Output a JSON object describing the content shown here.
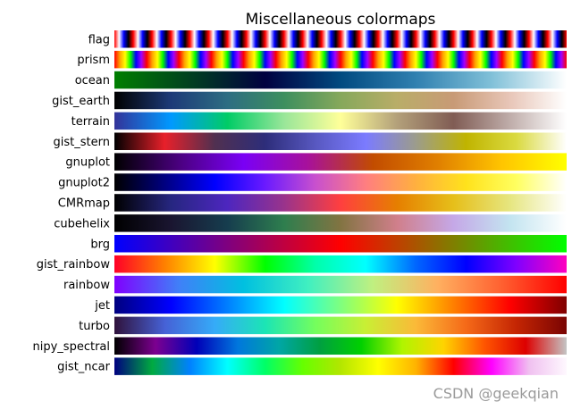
{
  "chart_data": {
    "type": "heatmap",
    "title": "Miscellaneous colormaps",
    "rows": [
      {
        "label": "flag",
        "stops": [
          "#ff0000",
          "#ffffff",
          "#0000ff",
          "#000000"
        ],
        "repeat": 24
      },
      {
        "label": "prism",
        "stops": [
          "#ff0000",
          "#ffa000",
          "#ffff00",
          "#00ff00",
          "#0000ff",
          "#a000ff"
        ],
        "repeat": 14
      },
      {
        "label": "ocean",
        "stops": [
          "#007f00",
          "#004020",
          "#000040",
          "#004a80",
          "#3080b0",
          "#80c0d8",
          "#ffffff"
        ]
      },
      {
        "label": "gist_earth",
        "stops": [
          "#000000",
          "#1d3a78",
          "#2d6d82",
          "#3d8f5e",
          "#86a85b",
          "#b9ad68",
          "#c89a76",
          "#e8c6b8",
          "#ffffff"
        ]
      },
      {
        "label": "terrain",
        "stops": [
          "#333399",
          "#0099ff",
          "#00cc66",
          "#99e699",
          "#ffff99",
          "#b3a07a",
          "#805c54",
          "#bfadaa",
          "#ffffff"
        ]
      },
      {
        "label": "gist_stern",
        "stops": [
          "#000000",
          "#e8202a",
          "#503050",
          "#2d2d7a",
          "#5858c0",
          "#7b7bff",
          "#9c9c8c",
          "#c0b400",
          "#dada40",
          "#ffffff"
        ]
      },
      {
        "label": "gnuplot",
        "stops": [
          "#000000",
          "#4a007f",
          "#7a00f5",
          "#a8119a",
          "#c24c00",
          "#e07f00",
          "#ffc500",
          "#ffff00"
        ]
      },
      {
        "label": "gnuplot2",
        "stops": [
          "#000000",
          "#000080",
          "#0000ff",
          "#6a1aff",
          "#c850ce",
          "#ff7e80",
          "#ffb03f",
          "#ffe21c",
          "#ffff60",
          "#ffffff"
        ]
      },
      {
        "label": "CMRmap",
        "stops": [
          "#000000",
          "#262680",
          "#4d26bf",
          "#99338c",
          "#ff3f3f",
          "#e67f00",
          "#e6bf1a",
          "#e6e680",
          "#ffffff"
        ]
      },
      {
        "label": "cubehelix",
        "stops": [
          "#000000",
          "#1a1530",
          "#163d4e",
          "#2e7e4e",
          "#827442",
          "#d07f8b",
          "#c5a8e7",
          "#c3e4f0",
          "#ffffff"
        ]
      },
      {
        "label": "brg",
        "stops": [
          "#0000ff",
          "#7f007f",
          "#ff0000",
          "#7f7f00",
          "#00ff00"
        ]
      },
      {
        "label": "gist_rainbow",
        "stops": [
          "#ff0028",
          "#ff8000",
          "#ffff00",
          "#00ff00",
          "#00ffaa",
          "#00ffff",
          "#0066ff",
          "#0000ff",
          "#8000ff",
          "#ff00bf"
        ]
      },
      {
        "label": "rainbow",
        "stops": [
          "#8000ff",
          "#4080f8",
          "#00c0e0",
          "#40f0c0",
          "#c0f080",
          "#ffb060",
          "#ff6030",
          "#ff0000"
        ]
      },
      {
        "label": "jet",
        "stops": [
          "#00007f",
          "#0000ff",
          "#007fff",
          "#00ffff",
          "#7fff7f",
          "#ffff00",
          "#ff7f00",
          "#ff0000",
          "#7f0000"
        ]
      },
      {
        "label": "turbo",
        "stops": [
          "#30123b",
          "#4661d6",
          "#35abf8",
          "#1be5b5",
          "#74fe5d",
          "#c9ef34",
          "#fbb938",
          "#f56918",
          "#c42503",
          "#7a0403"
        ]
      },
      {
        "label": "nipy_spectral",
        "stops": [
          "#000000",
          "#7c0090",
          "#0000b8",
          "#0077dd",
          "#00a6a6",
          "#00a040",
          "#00d000",
          "#b0f500",
          "#ffd400",
          "#ff5500",
          "#dd0000",
          "#c4c4c4"
        ]
      },
      {
        "label": "gist_ncar",
        "stops": [
          "#000080",
          "#00aa40",
          "#0080ff",
          "#00ffff",
          "#00ff66",
          "#66ff00",
          "#b3e600",
          "#ffff00",
          "#ffb300",
          "#ff0000",
          "#ff00ff",
          "#f0c0f0",
          "#fef8fe"
        ]
      }
    ]
  },
  "watermark": "CSDN @geekqian"
}
